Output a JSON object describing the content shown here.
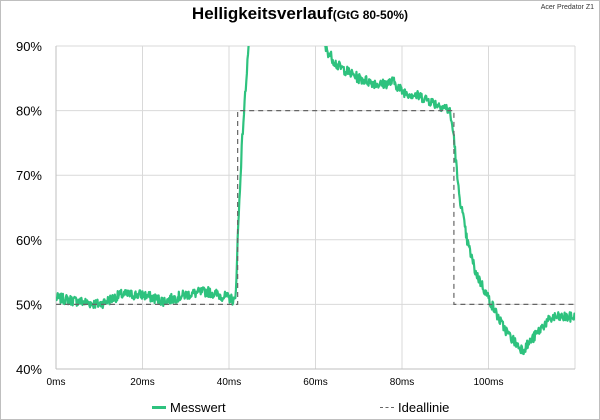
{
  "header": {
    "title": "Helligkeitsverlauf",
    "subtitle": "(GtG 80-50%)",
    "watermark": "Acer Predator Z1"
  },
  "legend": {
    "measured": "Messwert",
    "ideal": "Ideallinie"
  },
  "colors": {
    "measured": "#2ec27e",
    "ideal": "#666666",
    "grid": "#d9d9d9"
  },
  "chart_data": {
    "type": "line",
    "xlim": [
      0,
      120
    ],
    "ylim": [
      40,
      90
    ],
    "x_ticks": [
      0,
      20,
      40,
      60,
      80,
      100
    ],
    "x_tick_labels": [
      "0ms",
      "20ms",
      "40ms",
      "60ms",
      "80ms",
      "100ms"
    ],
    "y_ticks": [
      40,
      50,
      60,
      70,
      80,
      90
    ],
    "y_tick_labels": [
      "40%",
      "50%",
      "60%",
      "70%",
      "80%",
      "90%"
    ],
    "grid": true,
    "legend_position": "bottom",
    "series": [
      {
        "name": "Messwert",
        "style": "noisy-band",
        "noise": 0.8,
        "x": [
          0,
          5,
          10,
          15,
          20,
          25,
          30,
          35,
          40,
          41.5,
          42,
          43,
          44,
          44.5,
          46,
          60,
          62,
          65,
          70,
          75,
          78,
          80,
          85,
          88,
          90,
          91,
          92,
          93,
          95,
          97,
          100,
          103,
          105,
          107,
          108,
          110,
          113,
          115,
          118,
          120
        ],
        "y": [
          51,
          50.5,
          50,
          51.5,
          51.5,
          50.5,
          51.5,
          52,
          51,
          50.5,
          60,
          75,
          85,
          90,
          95,
          95,
          90,
          87,
          85,
          84,
          84.5,
          83,
          82,
          81,
          80.5,
          80,
          76,
          68,
          60,
          55,
          51,
          47,
          45,
          43.5,
          43,
          44.5,
          47,
          48,
          48,
          48
        ]
      },
      {
        "name": "Ideallinie",
        "style": "dashed",
        "x": [
          0,
          42,
          42,
          92,
          92,
          120
        ],
        "y": [
          50,
          50,
          80,
          80,
          50,
          50
        ]
      }
    ]
  }
}
